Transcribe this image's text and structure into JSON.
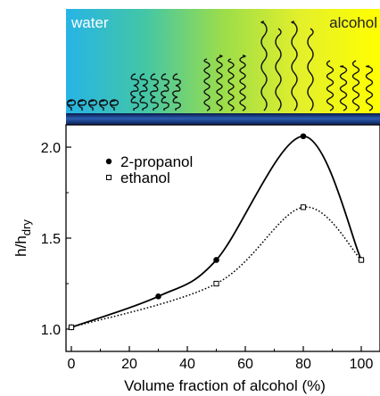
{
  "illustration": {
    "left_label": "water",
    "right_label": "alcohol",
    "gradient_colors": [
      "#27b4e6",
      "#43c6a6",
      "#9bdd4a",
      "#e4f02a",
      "#ffff00"
    ],
    "substrate_color": "#1b3a7a"
  },
  "chart_data": {
    "type": "scatter",
    "xlabel": "Volume fraction of alcohol (%)",
    "ylabel_main": "h/h",
    "ylabel_sub": "dry",
    "xlim": [
      -2,
      103
    ],
    "ylim": [
      0.96,
      2.13
    ],
    "xticks": [
      0,
      20,
      40,
      60,
      80,
      100
    ],
    "yticks": [
      1.0,
      1.5,
      2.0
    ],
    "ytick_labels": [
      "1.0",
      "1.5",
      "2.0"
    ],
    "grid": false,
    "legend_position": "top-left",
    "series": [
      {
        "name": "2-propanol",
        "marker": "filled-circle",
        "line": "solid",
        "color": "#000000",
        "x": [
          0,
          30,
          50,
          80,
          100
        ],
        "y": [
          1.01,
          1.18,
          1.38,
          2.06,
          1.38
        ]
      },
      {
        "name": "ethanol",
        "marker": "open-square",
        "line": "dotted",
        "color": "#000000",
        "x": [
          0,
          50,
          80,
          100
        ],
        "y": [
          1.01,
          1.25,
          1.67,
          1.38
        ]
      }
    ]
  }
}
